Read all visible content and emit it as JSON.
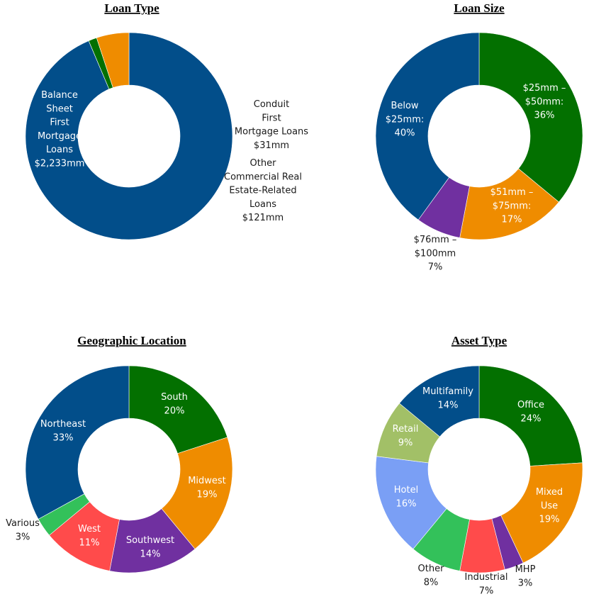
{
  "colors": {
    "navy": "#024E8A",
    "green": "#037000",
    "orange": "#EF8C00",
    "purple": "#7030A0",
    "red": "#FF4B4B",
    "light_green": "#33C15A",
    "olive": "#A2C067",
    "periwinkle": "#7A9FF5",
    "title": "#000000"
  },
  "chart_data": [
    {
      "type": "pie",
      "title": "Loan Type",
      "unit": "$mm",
      "slices": [
        {
          "name": "Balance Sheet First Mortgage Loans",
          "value": 2233,
          "color": "#024E8A",
          "label": [
            "Balance",
            "Sheet",
            "First",
            "Mortgage",
            "Loans",
            "$2,233mm"
          ]
        },
        {
          "name": "Conduit First Mortgage Loans",
          "value": 31,
          "color": "#037000",
          "label": [
            "Conduit",
            "First",
            "Mortgage Loans",
            "$31mm"
          ]
        },
        {
          "name": "Other Commercial Real Estate-Related Loans",
          "value": 121,
          "color": "#EF8C00",
          "label": [
            "Other",
            "Commercial Real",
            "Estate-Related",
            "Loans",
            "$121mm"
          ]
        }
      ]
    },
    {
      "type": "pie",
      "title": "Loan Size",
      "unit": "%",
      "slices": [
        {
          "name": "$25mm – $50mm",
          "value": 36,
          "color": "#037000",
          "label": [
            "$25mm –",
            "$50mm:",
            "36%"
          ]
        },
        {
          "name": "$51mm – $75mm",
          "value": 17,
          "color": "#EF8C00",
          "label": [
            "$51mm –",
            "$75mm:",
            "17%"
          ]
        },
        {
          "name": "$76mm – $100mm",
          "value": 7,
          "color": "#7030A0",
          "label": [
            "$76mm –",
            "$100mm",
            "7%"
          ]
        },
        {
          "name": "Below $25mm",
          "value": 40,
          "color": "#024E8A",
          "label": [
            "Below",
            "$25mm:",
            "40%"
          ]
        }
      ]
    },
    {
      "type": "pie",
      "title": "Geographic Location",
      "unit": "%",
      "slices": [
        {
          "name": "South",
          "value": 20,
          "color": "#037000",
          "label": [
            "South",
            "20%"
          ]
        },
        {
          "name": "Midwest",
          "value": 19,
          "color": "#EF8C00",
          "label": [
            "Midwest",
            "19%"
          ]
        },
        {
          "name": "Southwest",
          "value": 14,
          "color": "#7030A0",
          "label": [
            "Southwest",
            "14%"
          ]
        },
        {
          "name": "West",
          "value": 11,
          "color": "#FF4B4B",
          "label": [
            "West",
            "11%"
          ]
        },
        {
          "name": "Various",
          "value": 3,
          "color": "#33C15A",
          "label": [
            "Various",
            "3%"
          ]
        },
        {
          "name": "Northeast",
          "value": 33,
          "color": "#024E8A",
          "label": [
            "Northeast",
            "33%"
          ]
        }
      ]
    },
    {
      "type": "pie",
      "title": "Asset Type",
      "unit": "%",
      "slices": [
        {
          "name": "Office",
          "value": 24,
          "color": "#037000",
          "label": [
            "Office",
            "24%"
          ]
        },
        {
          "name": "Mixed Use",
          "value": 19,
          "color": "#EF8C00",
          "label": [
            "Mixed",
            "Use",
            "19%"
          ]
        },
        {
          "name": "MHP",
          "value": 3,
          "color": "#7030A0",
          "label": [
            "MHP",
            "3%"
          ]
        },
        {
          "name": "Industrial",
          "value": 7,
          "color": "#FF4B4B",
          "label": [
            "Industrial",
            "7%"
          ]
        },
        {
          "name": "Other",
          "value": 8,
          "color": "#33C15A",
          "label": [
            "Other",
            "8%"
          ]
        },
        {
          "name": "Hotel",
          "value": 16,
          "color": "#7A9FF5",
          "label": [
            "Hotel",
            "16%"
          ]
        },
        {
          "name": "Retail",
          "value": 9,
          "color": "#A2C067",
          "label": [
            "Retail",
            "9%"
          ]
        },
        {
          "name": "Multifamily",
          "value": 14,
          "color": "#024E8A",
          "label": [
            "Multifamily",
            "14%"
          ]
        }
      ]
    }
  ]
}
